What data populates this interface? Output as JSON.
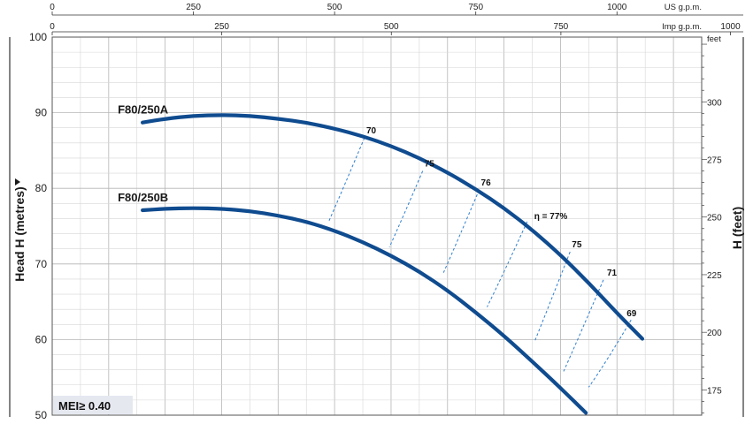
{
  "chart_data": {
    "type": "line",
    "xaxes": {
      "us_gpm": {
        "label": "US g.p.m.",
        "ticks": [
          0,
          250,
          500,
          750,
          1000
        ]
      },
      "imp_gpm": {
        "label": "Imp g.p.m.",
        "ticks": [
          0,
          250,
          500,
          750,
          1000
        ]
      }
    },
    "ylabel": "Head H  (metres)",
    "ylim": [
      50,
      100
    ],
    "yticks": [
      50,
      60,
      70,
      80,
      90,
      100
    ],
    "y2label": "H  (feet)",
    "y2unit": "feet",
    "y2ticks": [
      175,
      200,
      225,
      250,
      275,
      300
    ],
    "xlim_us_gpm": [
      0,
      1150
    ],
    "grid": true,
    "series": [
      {
        "name": "F80/250A",
        "x": [
          160,
          200,
          250,
          300,
          350,
          400,
          450,
          500,
          550,
          600,
          650,
          700,
          750,
          800,
          850,
          900,
          950,
          1000,
          1045
        ],
        "y": [
          88.7,
          89.2,
          89.6,
          89.7,
          89.6,
          89.2,
          88.7,
          87.9,
          86.9,
          85.6,
          84.0,
          82.1,
          79.9,
          77.4,
          74.5,
          71.2,
          67.5,
          63.5,
          60.1
        ]
      },
      {
        "name": "F80/250B",
        "x": [
          160,
          200,
          250,
          300,
          350,
          400,
          450,
          500,
          550,
          600,
          650,
          700,
          750,
          800,
          850,
          900,
          945
        ],
        "y": [
          77.1,
          77.3,
          77.4,
          77.3,
          77.0,
          76.4,
          75.6,
          74.4,
          72.9,
          71.1,
          69.0,
          66.5,
          63.6,
          60.5,
          57.1,
          53.6,
          50.3
        ]
      }
    ],
    "efficiency_lines": [
      {
        "label": "70",
        "x": [
          553,
          489
        ],
        "y": [
          86.7,
          75.5
        ]
      },
      {
        "label": "75",
        "x": [
          656,
          597
        ],
        "y": [
          82.3,
          72.2
        ]
      },
      {
        "label": "76",
        "x": [
          756,
          692
        ],
        "y": [
          79.8,
          68.7
        ]
      },
      {
        "label": "η = 77%",
        "x": [
          841,
          770
        ],
        "y": [
          75.6,
          64.3
        ]
      },
      {
        "label": "75",
        "x": [
          917,
          854
        ],
        "y": [
          71.6,
          59.7
        ]
      },
      {
        "label": "71",
        "x": [
          976,
          905
        ],
        "y": [
          67.9,
          55.7
        ]
      },
      {
        "label": "69",
        "x": [
          1025,
          950
        ],
        "y": [
          62.6,
          53.7
        ]
      }
    ],
    "annotations": [
      "MEI≥ 0.40"
    ]
  }
}
